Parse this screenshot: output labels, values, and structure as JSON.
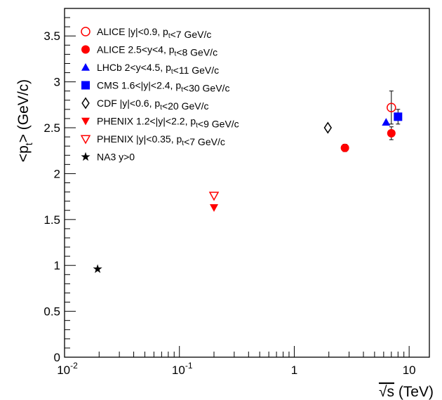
{
  "chart_data": {
    "type": "scatter",
    "xscale": "log",
    "xlim": [
      0.01,
      15
    ],
    "ylim": [
      0,
      3.8
    ],
    "xlabel": "√s (TeV)",
    "ylabel": "<pt> (GeV/c)",
    "x_ticks": [
      {
        "value": 0.01,
        "base": "10",
        "exp": "-2"
      },
      {
        "value": 0.1,
        "base": "10",
        "exp": "-1"
      },
      {
        "value": 1,
        "base": "1",
        "exp": ""
      },
      {
        "value": 10,
        "base": "10",
        "exp": ""
      }
    ],
    "y_ticks": [
      "0",
      "0.5",
      "1",
      "1.5",
      "2",
      "2.5",
      "3",
      "3.5"
    ],
    "legend_position": "top-left",
    "series": [
      {
        "name": "ALICE |y|<0.9, pt<7 GeV/c",
        "marker": "circle-open",
        "color": "#ff0000",
        "points": [
          {
            "x": 7,
            "y": 2.72,
            "yerr": 0.18
          }
        ]
      },
      {
        "name": "ALICE 2.5<y<4, pt<8 GeV/c",
        "marker": "circle",
        "color": "#ff0000",
        "points": [
          {
            "x": 2.76,
            "y": 2.28,
            "yerr": 0.04
          },
          {
            "x": 7,
            "y": 2.44,
            "yerr": 0.07
          }
        ]
      },
      {
        "name": "LHCb 2<y<4.5, pt<11 GeV/c",
        "marker": "triangle-up",
        "color": "#0000ff",
        "points": [
          {
            "x": 6.3,
            "y": 2.56,
            "yerr": 0.0
          }
        ]
      },
      {
        "name": "CMS 1.6<|y|<2.4, pt<30 GeV/c",
        "marker": "square",
        "color": "#0000ff",
        "points": [
          {
            "x": 8,
            "y": 2.62,
            "yerr": 0.08
          }
        ]
      },
      {
        "name": "CDF |y|<0.6, pt<20 GeV/c",
        "marker": "diamond-open",
        "color": "#000000",
        "points": [
          {
            "x": 1.96,
            "y": 2.5,
            "yerr": 0.0
          }
        ]
      },
      {
        "name": "PHENIX 1.2<|y|<2.2, pt<9 GeV/c",
        "marker": "triangle-down",
        "color": "#ff0000",
        "points": [
          {
            "x": 0.2,
            "y": 1.63,
            "yerr": 0.0
          }
        ]
      },
      {
        "name": "PHENIX |y|<0.35, pt<7 GeV/c",
        "marker": "triangle-down-open",
        "color": "#ff0000",
        "points": [
          {
            "x": 0.2,
            "y": 1.76,
            "yerr": 0.0
          }
        ]
      },
      {
        "name": "NA3 y>0",
        "marker": "star",
        "color": "#000000",
        "points": [
          {
            "x": 0.0194,
            "y": 0.96,
            "yerr": 0.0
          }
        ]
      }
    ]
  }
}
